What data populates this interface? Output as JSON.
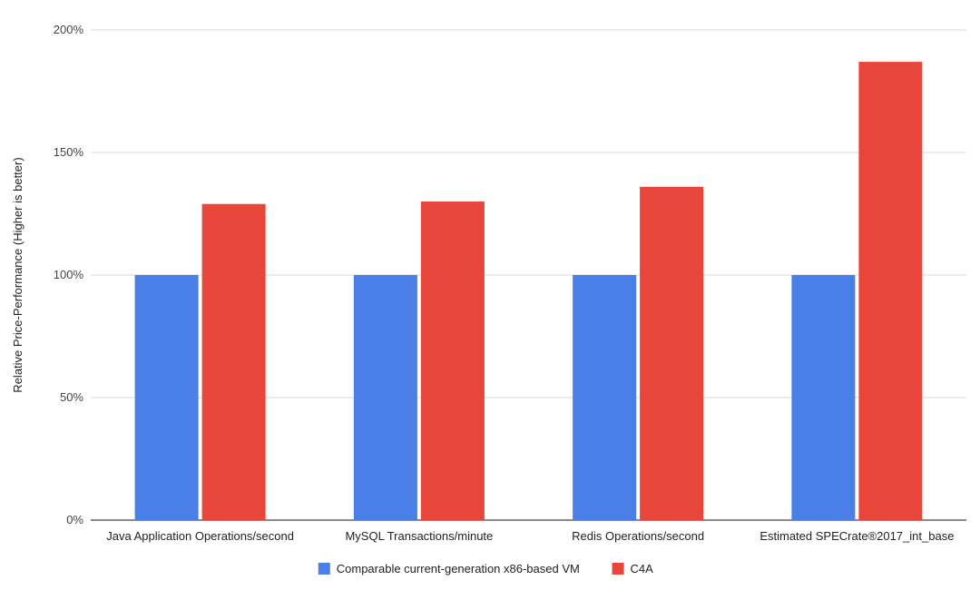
{
  "chart_data": {
    "type": "bar",
    "title": "",
    "xlabel": "",
    "ylabel": "Relative Price-Performance (Higher is better)",
    "categories": [
      "Java Application Operations/second",
      "MySQL Transactions/minute",
      "Redis Operations/second",
      "Estimated SPECrate®2017_int_base"
    ],
    "series": [
      {
        "name": "Comparable current-generation x86-based VM",
        "color": "#4a7fe8",
        "values": [
          100,
          100,
          100,
          100
        ]
      },
      {
        "name": "C4A",
        "color": "#e8463b",
        "values": [
          129,
          130,
          136,
          187
        ]
      }
    ],
    "ylim": [
      0,
      200
    ],
    "yticks": [
      0,
      50,
      100,
      150,
      200
    ],
    "ytick_labels": [
      "0%",
      "50%",
      "100%",
      "150%",
      "200%"
    ],
    "grid": true,
    "legend_position": "bottom-center"
  }
}
